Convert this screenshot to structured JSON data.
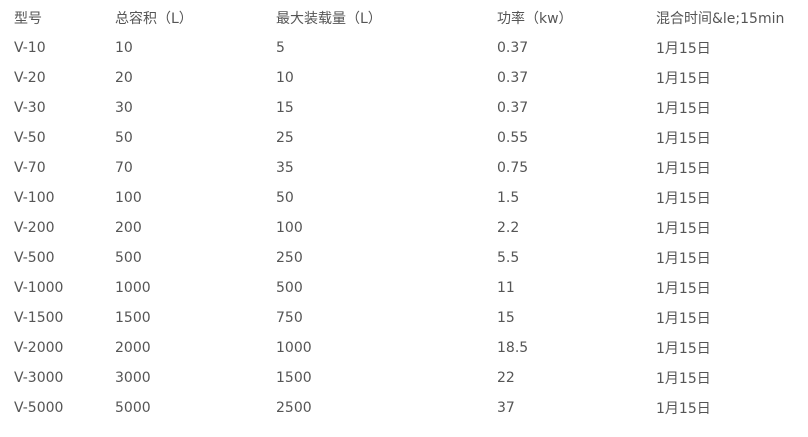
{
  "table": {
    "headers": [
      "型号",
      "总容积（L）",
      "最大装载量（L）",
      "功率（kw）",
      "混合时间&le;15min"
    ],
    "rows": [
      [
        "V-10",
        "10",
        "5",
        "0.37",
        "1月15日"
      ],
      [
        "V-20",
        "20",
        "10",
        "0.37",
        "1月15日"
      ],
      [
        "V-30",
        "30",
        "15",
        "0.37",
        "1月15日"
      ],
      [
        "V-50",
        "50",
        "25",
        "0.55",
        "1月15日"
      ],
      [
        "V-70",
        "70",
        "35",
        "0.75",
        "1月15日"
      ],
      [
        "V-100",
        "100",
        "50",
        "1.5",
        "1月15日"
      ],
      [
        "V-200",
        "200",
        "100",
        "2.2",
        "1月15日"
      ],
      [
        "V-500",
        "500",
        "250",
        "5.5",
        "1月15日"
      ],
      [
        "V-1000",
        "1000",
        "500",
        "11",
        "1月15日"
      ],
      [
        "V-1500",
        "1500",
        "750",
        "15",
        "1月15日"
      ],
      [
        "V-2000",
        "2000",
        "1000",
        "18.5",
        "1月15日"
      ],
      [
        "V-3000",
        "3000",
        "1500",
        "22",
        "1月15日"
      ],
      [
        "V-5000",
        "5000",
        "2500",
        "37",
        "1月15日"
      ]
    ]
  }
}
